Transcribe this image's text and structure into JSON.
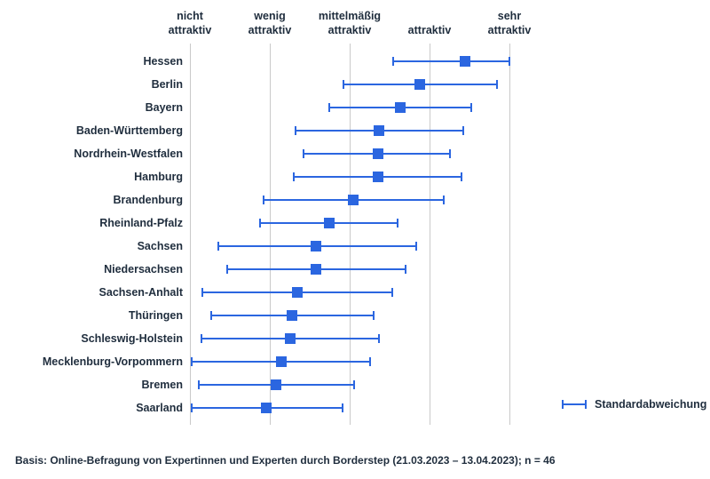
{
  "chart_data": {
    "type": "scatter",
    "subtype": "dot-whisker-errorbar",
    "title": "",
    "orientation": "horizontal",
    "grid": true,
    "x_axis": {
      "min": 1,
      "max": 5,
      "ticks": [
        {
          "value": 1,
          "label": "nicht\nattraktiv"
        },
        {
          "value": 2,
          "label": "wenig\nattraktiv"
        },
        {
          "value": 3,
          "label": "mittelmäßig\nattraktiv"
        },
        {
          "value": 4,
          "label": "attraktiv"
        },
        {
          "value": 5,
          "label": "sehr\nattraktiv"
        }
      ]
    },
    "legend": {
      "label": "Standardabweichung",
      "position": "right"
    },
    "series": [
      {
        "name": "Standardabweichung",
        "marker": "square",
        "error_bars": true
      }
    ],
    "points": [
      {
        "label": "Hessen",
        "mean": 4.44,
        "low": 3.54,
        "high": 5.0
      },
      {
        "label": "Berlin",
        "mean": 3.88,
        "low": 2.92,
        "high": 4.84
      },
      {
        "label": "Bayern",
        "mean": 3.63,
        "low": 2.74,
        "high": 4.52
      },
      {
        "label": "Baden-Württemberg",
        "mean": 3.37,
        "low": 2.32,
        "high": 4.42
      },
      {
        "label": "Nordrhein-Westfalen",
        "mean": 3.35,
        "low": 2.42,
        "high": 4.26
      },
      {
        "label": "Hamburg",
        "mean": 3.35,
        "low": 2.3,
        "high": 4.4
      },
      {
        "label": "Brandenburg",
        "mean": 3.04,
        "low": 1.92,
        "high": 4.18
      },
      {
        "label": "Rheinland-Pfalz",
        "mean": 2.74,
        "low": 1.88,
        "high": 3.6
      },
      {
        "label": "Sachsen",
        "mean": 2.58,
        "low": 1.35,
        "high": 3.83
      },
      {
        "label": "Niedersachsen",
        "mean": 2.58,
        "low": 1.47,
        "high": 3.7
      },
      {
        "label": "Sachsen-Anhalt",
        "mean": 2.34,
        "low": 1.15,
        "high": 3.53
      },
      {
        "label": "Thüringen",
        "mean": 2.28,
        "low": 1.27,
        "high": 3.3
      },
      {
        "label": "Schleswig-Holstein",
        "mean": 2.25,
        "low": 1.14,
        "high": 3.37
      },
      {
        "label": "Mecklenburg-Vorpommern",
        "mean": 2.14,
        "low": 1.02,
        "high": 3.25
      },
      {
        "label": "Bremen",
        "mean": 2.08,
        "low": 1.11,
        "high": 3.05
      },
      {
        "label": "Saarland",
        "mean": 1.95,
        "low": 1.02,
        "high": 2.91
      }
    ]
  },
  "footer": {
    "text": "Basis: Online-Befragung von Expertinnen und Experten durch Borderstep (21.03.2023 – 13.04.2023); n = 46"
  },
  "colors": {
    "accent": "#2b66e0",
    "text": "#1f2d3d",
    "grid": "#c9c9c9"
  }
}
